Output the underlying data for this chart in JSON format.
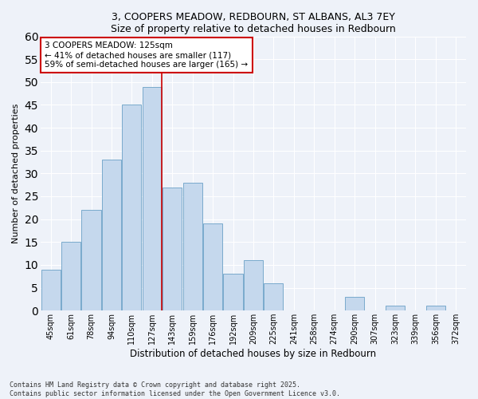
{
  "title": "3, COOPERS MEADOW, REDBOURN, ST ALBANS, AL3 7EY",
  "subtitle": "Size of property relative to detached houses in Redbourn",
  "xlabel": "Distribution of detached houses by size in Redbourn",
  "ylabel": "Number of detached properties",
  "categories": [
    "45sqm",
    "61sqm",
    "78sqm",
    "94sqm",
    "110sqm",
    "127sqm",
    "143sqm",
    "159sqm",
    "176sqm",
    "192sqm",
    "209sqm",
    "225sqm",
    "241sqm",
    "258sqm",
    "274sqm",
    "290sqm",
    "307sqm",
    "323sqm",
    "339sqm",
    "356sqm",
    "372sqm"
  ],
  "values": [
    9,
    15,
    22,
    33,
    45,
    49,
    27,
    28,
    19,
    8,
    11,
    6,
    0,
    0,
    0,
    3,
    0,
    1,
    0,
    1,
    0
  ],
  "bar_color": "#c5d8ed",
  "bar_edge_color": "#7aaacc",
  "vline_index": 5,
  "vline_color": "#cc0000",
  "annotation_text": "3 COOPERS MEADOW: 125sqm\n← 41% of detached houses are smaller (117)\n59% of semi-detached houses are larger (165) →",
  "annotation_box_color": "#ffffff",
  "annotation_box_edge": "#cc0000",
  "footer": "Contains HM Land Registry data © Crown copyright and database right 2025.\nContains public sector information licensed under the Open Government Licence v3.0.",
  "ylim": [
    0,
    60
  ],
  "background_color": "#eef2f9",
  "grid_color": "#ffffff"
}
